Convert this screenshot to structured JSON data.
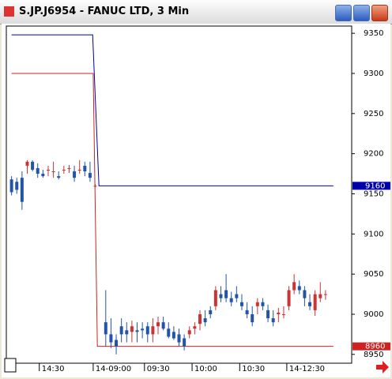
{
  "window": {
    "title": "S.JP.J6954 - FANUC LTD, 3 Min"
  },
  "chart_data": {
    "type": "candlestick",
    "up_color": "#cc3333",
    "down_color": "#2255aa",
    "x": [
      1,
      2,
      3,
      4,
      5,
      6,
      7,
      8,
      9,
      10,
      11,
      12,
      13,
      14,
      15,
      16,
      17,
      19,
      20,
      21,
      22,
      23,
      24,
      25,
      26,
      27,
      28,
      29,
      30,
      31,
      32,
      33,
      34,
      35,
      36,
      37,
      38,
      39,
      40,
      41,
      42,
      43,
      44,
      45,
      46,
      47,
      48,
      49,
      50,
      51,
      52,
      53,
      54,
      55,
      56,
      57,
      58,
      59,
      60,
      61
    ],
    "open": [
      9168,
      9165,
      9170,
      9185,
      9190,
      9182,
      9175,
      9180,
      9178,
      9172,
      9180,
      9182,
      9178,
      9180,
      9185,
      9176,
      9160,
      8990,
      8975,
      8968,
      8985,
      8980,
      8978,
      8980,
      8982,
      8985,
      8975,
      8985,
      8990,
      8982,
      8978,
      8975,
      8970,
      8975,
      8982,
      8988,
      8995,
      9005,
      9010,
      9025,
      9030,
      9020,
      9025,
      9015,
      9005,
      9000,
      9010,
      9015,
      9005,
      8995,
      9000,
      9000,
      9010,
      9030,
      9035,
      9030,
      9015,
      9005,
      9020,
      9025
    ],
    "high": [
      9172,
      9170,
      9178,
      9192,
      9192,
      9188,
      9180,
      9185,
      9190,
      9178,
      9185,
      9186,
      9185,
      9192,
      9190,
      9190,
      9162,
      9030,
      8995,
      8975,
      8995,
      8990,
      8992,
      8990,
      8990,
      8990,
      8995,
      8997,
      8997,
      8990,
      8985,
      8982,
      8975,
      8985,
      8990,
      9005,
      9005,
      9010,
      9035,
      9035,
      9050,
      9028,
      9035,
      9025,
      9015,
      9010,
      9020,
      9020,
      9012,
      9005,
      9008,
      9010,
      9035,
      9050,
      9042,
      9035,
      9025,
      9030,
      9040,
      9030
    ],
    "low": [
      9148,
      9150,
      9130,
      9175,
      9178,
      9170,
      9170,
      9172,
      9170,
      9168,
      9175,
      9176,
      9165,
      9175,
      9172,
      9165,
      9158,
      8960,
      8958,
      8950,
      8965,
      8965,
      8965,
      8965,
      8970,
      8965,
      8965,
      8975,
      8980,
      8970,
      8968,
      8960,
      8955,
      8970,
      8975,
      8980,
      8985,
      8995,
      9005,
      9015,
      9015,
      9010,
      9015,
      9005,
      8995,
      8985,
      9000,
      9005,
      8990,
      8985,
      8990,
      8995,
      9005,
      9025,
      9025,
      9010,
      9005,
      8998,
      9015,
      9018
    ],
    "close": [
      9152,
      9155,
      9140,
      9190,
      9180,
      9175,
      9172,
      9180,
      9178,
      9170,
      9180,
      9182,
      9170,
      9180,
      9178,
      9170,
      9160,
      8975,
      8965,
      8960,
      8975,
      8975,
      8985,
      8978,
      8980,
      8975,
      8985,
      8990,
      8982,
      8972,
      8970,
      8965,
      8960,
      8980,
      8985,
      9000,
      8990,
      9000,
      9030,
      9020,
      9020,
      9015,
      9020,
      9010,
      9000,
      8990,
      9015,
      9010,
      8995,
      8990,
      9002,
      9000,
      9030,
      9040,
      9030,
      9020,
      9010,
      9025,
      9025,
      9025
    ],
    "lines": [
      {
        "color": "#0000aa",
        "x": [
          1,
          16.5,
          17.7,
          62.5
        ],
        "values": [
          9348,
          9348,
          9160,
          9160
        ],
        "tag": 9160
      },
      {
        "color": "#cc2222",
        "x": [
          1,
          16.6,
          17.4,
          62.5
        ],
        "values": [
          9300,
          9300,
          8960,
          8960
        ],
        "tag": 8960
      }
    ],
    "xlim": [
      0,
      66
    ],
    "ylim": [
      8939,
      9359
    ],
    "xticks": [
      {
        "value": 6.3,
        "label": "14:30"
      },
      {
        "value": 16.6,
        "label": "14-09:00"
      },
      {
        "value": 26.4,
        "label": "09:30"
      },
      {
        "value": 35.5,
        "label": "10:00"
      },
      {
        "value": 44.6,
        "label": "10:30"
      },
      {
        "value": 53.6,
        "label": "14-12:30"
      }
    ],
    "yticks": [
      8950,
      9000,
      9050,
      9100,
      9150,
      9200,
      9250,
      9300,
      9350
    ]
  }
}
